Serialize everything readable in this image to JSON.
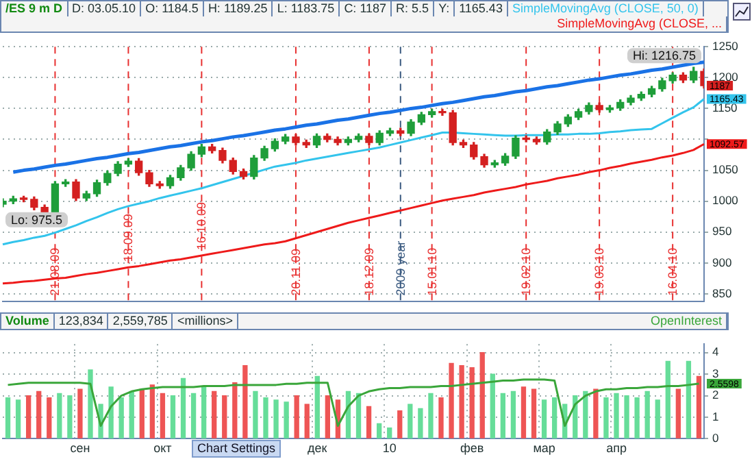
{
  "chart_data": [
    {
      "type": "candlestick",
      "title": "/ES 9 m D",
      "annotations": [
        "D: 03.05.10",
        "O: 1184.5",
        "H: 1189.25",
        "L: 1183.75",
        "C: 1187",
        "R: 5.5",
        "Y:",
        "1165.43",
        {
          "text": "Hi: 1216.75",
          "y": 1216.75
        },
        {
          "text": "Lo: 975.5",
          "y": 975.5
        }
      ],
      "categories": [
        null,
        null,
        null,
        null,
        null,
        "21.08.09",
        null,
        null,
        null,
        null,
        null,
        null,
        "18.09.09",
        null,
        null,
        null,
        null,
        null,
        null,
        "16.10.09",
        null,
        null,
        null,
        null,
        null,
        null,
        null,
        null,
        "20.11.09",
        null,
        null,
        null,
        null,
        null,
        null,
        "18.12.09",
        null,
        null,
        "2009 year",
        null,
        null,
        "15.01.10",
        null,
        null,
        null,
        null,
        null,
        null,
        null,
        null,
        "19.02.10",
        null,
        null,
        null,
        null,
        null,
        null,
        "19.03.10",
        null,
        null,
        null,
        null,
        null,
        null,
        "16.04.10",
        null,
        null,
        null
      ],
      "ohlc": [
        [
          995,
          1004,
          991,
          1000
        ],
        [
          1000,
          1008,
          996,
          1004
        ],
        [
          1004,
          1008,
          999,
          1003
        ],
        [
          1003,
          1007,
          986,
          990
        ],
        [
          990,
          994,
          975.5,
          982
        ],
        [
          982,
          1032,
          978,
          1028
        ],
        [
          1028,
          1035,
          1024,
          1031
        ],
        [
          1031,
          1035,
          1001,
          1005
        ],
        [
          1005,
          1016,
          1001,
          1012
        ],
        [
          1012,
          1034,
          1008,
          1030
        ],
        [
          1030,
          1049,
          1026,
          1045
        ],
        [
          1045,
          1064,
          1041,
          1060
        ],
        [
          1060,
          1069,
          1056,
          1065
        ],
        [
          1065,
          1069,
          1042,
          1046
        ],
        [
          1046,
          1050,
          1024,
          1028
        ],
        [
          1028,
          1032,
          1021,
          1025
        ],
        [
          1025,
          1042,
          1021,
          1038
        ],
        [
          1038,
          1058,
          1034,
          1054
        ],
        [
          1054,
          1080,
          1050,
          1076
        ],
        [
          1076,
          1092,
          1072,
          1088
        ],
        [
          1088,
          1092,
          1078,
          1082
        ],
        [
          1082,
          1086,
          1062,
          1066
        ],
        [
          1066,
          1070,
          1044,
          1048
        ],
        [
          1048,
          1052,
          1036,
          1040
        ],
        [
          1040,
          1074,
          1036,
          1070
        ],
        [
          1070,
          1089,
          1066,
          1085
        ],
        [
          1085,
          1101,
          1081,
          1097
        ],
        [
          1097,
          1108,
          1093,
          1104
        ],
        [
          1104,
          1108,
          1091,
          1095
        ],
        [
          1095,
          1099,
          1087,
          1091
        ],
        [
          1091,
          1109,
          1087,
          1105
        ],
        [
          1105,
          1109,
          1096,
          1100
        ],
        [
          1100,
          1104,
          1091,
          1095
        ],
        [
          1095,
          1104,
          1091,
          1100
        ],
        [
          1100,
          1109,
          1096,
          1105
        ],
        [
          1105,
          1109,
          1091,
          1095
        ],
        [
          1095,
          1114,
          1091,
          1110
        ],
        [
          1110,
          1118,
          1106,
          1114
        ],
        [
          1114,
          1118,
          1106,
          1110
        ],
        [
          1110,
          1132,
          1106,
          1128
        ],
        [
          1128,
          1144,
          1124,
          1140
        ],
        [
          1140,
          1149,
          1136,
          1145
        ],
        [
          1145,
          1149,
          1139,
          1143
        ],
        [
          1143,
          1147,
          1091,
          1095
        ],
        [
          1095,
          1099,
          1087,
          1091
        ],
        [
          1091,
          1095,
          1068,
          1072
        ],
        [
          1072,
          1076,
          1055,
          1059
        ],
        [
          1059,
          1066,
          1055,
          1062
        ],
        [
          1062,
          1077,
          1058,
          1073
        ],
        [
          1073,
          1106,
          1069,
          1102
        ],
        [
          1102,
          1106,
          1096,
          1100
        ],
        [
          1100,
          1104,
          1092,
          1096
        ],
        [
          1096,
          1116,
          1092,
          1112
        ],
        [
          1112,
          1129,
          1108,
          1125
        ],
        [
          1125,
          1140,
          1121,
          1136
        ],
        [
          1136,
          1149,
          1132,
          1145
        ],
        [
          1145,
          1159,
          1141,
          1155
        ],
        [
          1155,
          1159,
          1144,
          1148
        ],
        [
          1148,
          1155,
          1144,
          1151
        ],
        [
          1151,
          1164,
          1147,
          1160
        ],
        [
          1160,
          1171,
          1156,
          1167
        ],
        [
          1167,
          1177,
          1163,
          1173
        ],
        [
          1173,
          1186,
          1169,
          1182
        ],
        [
          1182,
          1199,
          1178,
          1195
        ],
        [
          1195,
          1208,
          1191,
          1204
        ],
        [
          1204,
          1208,
          1192,
          1196
        ],
        [
          1196,
          1216.75,
          1192,
          1210
        ],
        [
          1210,
          1214,
          1183,
          1187
        ]
      ],
      "colors": [
        "#1f9e3a",
        "#1f9e3a",
        "#d42020",
        "#d42020",
        "#d42020",
        "#1f9e3a",
        "#1f9e3a",
        "#d42020",
        "#1f9e3a",
        "#1f9e3a",
        "#1f9e3a",
        "#1f9e3a",
        "#1f9e3a",
        "#d42020",
        "#d42020",
        "#d42020",
        "#1f9e3a",
        "#1f9e3a",
        "#1f9e3a",
        "#1f9e3a",
        "#d42020",
        "#d42020",
        "#d42020",
        "#d42020",
        "#1f9e3a",
        "#1f9e3a",
        "#1f9e3a",
        "#1f9e3a",
        "#d42020",
        "#d42020",
        "#1f9e3a",
        "#d42020",
        "#d42020",
        "#1f9e3a",
        "#1f9e3a",
        "#d42020",
        "#1f9e3a",
        "#1f9e3a",
        "#d42020",
        "#1f9e3a",
        "#1f9e3a",
        "#1f9e3a",
        "#d42020",
        "#d42020",
        "#d42020",
        "#d42020",
        "#d42020",
        "#1f9e3a",
        "#1f9e3a",
        "#1f9e3a",
        "#d42020",
        "#d42020",
        "#1f9e3a",
        "#1f9e3a",
        "#1f9e3a",
        "#1f9e3a",
        "#1f9e3a",
        "#d42020",
        "#1f9e3a",
        "#1f9e3a",
        "#1f9e3a",
        "#1f9e3a",
        "#1f9e3a",
        "#1f9e3a",
        "#1f9e3a",
        "#d42020",
        "#1f9e3a",
        "#d42020"
      ],
      "value_labels": [
        null,
        null,
        null,
        null,
        null,
        null,
        null,
        null,
        null,
        null,
        null,
        null,
        null,
        null,
        null,
        null,
        null,
        null,
        null,
        null,
        null,
        null,
        null,
        null,
        null,
        null,
        null,
        null,
        null,
        null,
        null,
        null,
        null,
        null,
        null,
        null,
        null,
        null,
        null,
        null,
        null,
        null,
        null,
        null,
        null,
        null,
        null,
        null,
        null,
        null,
        null,
        null,
        null,
        null,
        null,
        null,
        null,
        null,
        null,
        null,
        null,
        null,
        null,
        null,
        null,
        null,
        null,
        "1187"
      ],
      "series": [
        {
          "type": "line",
          "name": "SimpleMovingAvg (CLOSE, 50, 0)",
          "color": "#33c4ec",
          "values": [
            930,
            934,
            937,
            941,
            944,
            949,
            955,
            961,
            968,
            974,
            981,
            987,
            992,
            996,
            1000,
            1005,
            1009,
            1013,
            1017,
            1021,
            1026,
            1031,
            1036,
            1041,
            1046,
            1051,
            1056,
            1059,
            1062,
            1066,
            1069,
            1072,
            1075,
            1078,
            1081,
            1084,
            1087,
            1091,
            1095,
            1099,
            1103,
            1107,
            1111,
            1111,
            1110,
            1109,
            1108,
            1107,
            1106,
            1106,
            1107,
            1107,
            1107,
            1108,
            1108,
            1109,
            1109,
            1110,
            1112,
            1113,
            1115,
            1116,
            1117,
            1126,
            1135,
            1144,
            1152,
            1165.43
          ],
          "value_labels": [
            null,
            null,
            null,
            null,
            null,
            null,
            null,
            null,
            null,
            null,
            null,
            null,
            null,
            null,
            null,
            null,
            null,
            null,
            null,
            null,
            null,
            null,
            null,
            null,
            null,
            null,
            null,
            null,
            null,
            null,
            null,
            null,
            null,
            null,
            null,
            null,
            null,
            null,
            null,
            null,
            null,
            null,
            null,
            null,
            null,
            null,
            null,
            null,
            null,
            null,
            null,
            null,
            null,
            null,
            null,
            null,
            null,
            null,
            null,
            null,
            null,
            null,
            null,
            null,
            null,
            null,
            null,
            "1165.43"
          ]
        },
        {
          "type": "line",
          "name": "SimpleMovingAvg (CLOSE, ...",
          "color": "#ee1a1a",
          "values": [
            867,
            868,
            870,
            871,
            873,
            875,
            876,
            879,
            882,
            884,
            887,
            890,
            893,
            895,
            898,
            901,
            904,
            906,
            909,
            912,
            915,
            918,
            921,
            924,
            927,
            930,
            932,
            935,
            940,
            945,
            950,
            955,
            960,
            965,
            969,
            973,
            977,
            981,
            985,
            989,
            993,
            997,
            1001,
            1004,
            1007,
            1010,
            1014,
            1017,
            1020,
            1023,
            1027,
            1030,
            1033,
            1037,
            1040,
            1043,
            1047,
            1050,
            1054,
            1057,
            1061,
            1064,
            1067,
            1071,
            1074,
            1078,
            1083,
            1092.57
          ],
          "value_labels": [
            null,
            null,
            null,
            null,
            null,
            null,
            null,
            null,
            null,
            null,
            null,
            null,
            null,
            null,
            null,
            null,
            null,
            null,
            null,
            null,
            null,
            null,
            null,
            null,
            null,
            null,
            null,
            null,
            null,
            null,
            null,
            null,
            null,
            null,
            null,
            null,
            null,
            null,
            null,
            null,
            null,
            null,
            null,
            null,
            null,
            null,
            null,
            null,
            null,
            null,
            null,
            null,
            null,
            null,
            null,
            null,
            null,
            null,
            null,
            null,
            null,
            null,
            null,
            null,
            null,
            null,
            null,
            "1092.57"
          ]
        },
        {
          "type": "line",
          "color": "#1a72e6",
          "values": [
            null,
            1047,
            1050,
            1052,
            1055,
            1058,
            1060,
            1063,
            1066,
            1069,
            1071,
            1074,
            1077,
            1079,
            1082,
            1085,
            1088,
            1090,
            1093,
            1096,
            1098,
            1101,
            1104,
            1106,
            1109,
            1112,
            1115,
            1117,
            1120,
            1123,
            1125,
            1128,
            1131,
            1133,
            1136,
            1139,
            1142,
            1144,
            1147,
            1150,
            1152,
            1155,
            1158,
            1160,
            1163,
            1166,
            1169,
            1171,
            1174,
            1177,
            1179,
            1182,
            1185,
            1187,
            1190,
            1193,
            1196,
            1198,
            1201,
            1204,
            1206,
            1209,
            1212,
            1214,
            1217,
            1220,
            1223,
            1225
          ]
        }
      ],
      "ylim": [
        838,
        1250
      ],
      "yticks": [
        850,
        900,
        950,
        1000,
        1050,
        {
          "value": 1100,
          "label": null
        },
        1150,
        1200,
        1250
      ],
      "ref_lines": [
        {
          "axis": "x",
          "value": "21.08.09",
          "color": "#e83030",
          "line_style": "dashed"
        },
        {
          "axis": "x",
          "value": "18.09.09",
          "color": "#e83030",
          "line_style": "dashed"
        },
        {
          "axis": "x",
          "value": "16.10.09",
          "color": "#e83030",
          "line_style": "dashed"
        },
        {
          "axis": "x",
          "value": "20.11.09",
          "color": "#e83030",
          "line_style": "dashed"
        },
        {
          "axis": "x",
          "value": "18.12.09",
          "color": "#e83030",
          "line_style": "dashed"
        },
        {
          "axis": "x",
          "value": "2009 year",
          "color": "#3a5a80",
          "line_style": "dashed"
        },
        {
          "axis": "x",
          "value": "15.01.10",
          "color": "#e83030",
          "line_style": "dashed"
        },
        {
          "axis": "x",
          "value": "19.02.10",
          "color": "#e83030",
          "line_style": "dashed"
        },
        {
          "axis": "x",
          "value": "19.03.10",
          "color": "#e83030",
          "line_style": "dashed"
        },
        {
          "axis": "x",
          "value": "16.04.10",
          "color": "#e83030",
          "line_style": "dashed"
        }
      ],
      "grid": "y",
      "legend": false,
      "marker": "none"
    },
    {
      "type": "bar",
      "title": "Volume",
      "subtitle": "123,834",
      "xlabel": "Chart Settings",
      "annotations": [
        "2,559,785",
        "<millions>"
      ],
      "categories": [
        null,
        null,
        null,
        null,
        null,
        null,
        null,
        "сен",
        null,
        null,
        null,
        null,
        null,
        null,
        null,
        "окт",
        null,
        null,
        null,
        null,
        null,
        null,
        null,
        null,
        null,
        null,
        null,
        null,
        null,
        null,
        "дек",
        null,
        null,
        null,
        null,
        null,
        null,
        "10",
        null,
        null,
        null,
        null,
        null,
        null,
        null,
        "фев",
        null,
        null,
        null,
        null,
        null,
        null,
        "мар",
        null,
        null,
        null,
        null,
        null,
        null,
        "апр",
        null,
        null,
        null,
        null,
        null,
        null,
        null,
        null
      ],
      "values": [
        1.9,
        1.8,
        2.0,
        2.2,
        1.9,
        2.1,
        2.0,
        2.3,
        3.2,
        1.6,
        2.4,
        1.9,
        2.2,
        2.3,
        2.5,
        2.1,
        2.0,
        2.8,
        2.1,
        2.4,
        2.2,
        2.0,
        2.6,
        3.4,
        2.2,
        1.9,
        1.8,
        1.7,
        2.0,
        1.6,
        2.9,
        2.0,
        1.8,
        2.2,
        2.1,
        1.5,
        0.7,
        0.5,
        1.3,
        1.6,
        1.4,
        2.1,
        1.9,
        3.5,
        3.4,
        3.3,
        4.0,
        3.0,
        2.1,
        2.2,
        2.4,
        2.3,
        1.8,
        1.9,
        1.6,
        2.0,
        2.2,
        2.3,
        1.9,
        2.1,
        2.0,
        1.9,
        2.2,
        1.8,
        3.6,
        2.3,
        3.6,
        2.9
      ],
      "colors": [
        "#66dd99",
        "#66dd99",
        "#ee5555",
        "#ee5555",
        "#ee5555",
        "#66dd99",
        "#66dd99",
        "#ee5555",
        "#66dd99",
        "#66dd99",
        "#66dd99",
        "#66dd99",
        "#66dd99",
        "#ee5555",
        "#ee5555",
        "#ee5555",
        "#66dd99",
        "#66dd99",
        "#66dd99",
        "#66dd99",
        "#ee5555",
        "#ee5555",
        "#ee5555",
        "#ee5555",
        "#66dd99",
        "#66dd99",
        "#66dd99",
        "#66dd99",
        "#ee5555",
        "#ee5555",
        "#66dd99",
        "#ee5555",
        "#ee5555",
        "#66dd99",
        "#66dd99",
        "#ee5555",
        "#66dd99",
        "#66dd99",
        "#ee5555",
        "#66dd99",
        "#66dd99",
        "#66dd99",
        "#ee5555",
        "#ee5555",
        "#ee5555",
        "#ee5555",
        "#ee5555",
        "#66dd99",
        "#66dd99",
        "#66dd99",
        "#ee5555",
        "#ee5555",
        "#66dd99",
        "#66dd99",
        "#66dd99",
        "#66dd99",
        "#66dd99",
        "#ee5555",
        "#66dd99",
        "#66dd99",
        "#66dd99",
        "#66dd99",
        "#66dd99",
        "#66dd99",
        "#66dd99",
        "#ee5555",
        "#66dd99",
        "#ee5555"
      ],
      "series": [
        {
          "type": "line",
          "name": "OpenInterest",
          "color": "#3aa63a",
          "values": [
            2.5,
            2.55,
            2.6,
            2.6,
            2.6,
            2.6,
            2.6,
            2.6,
            2.55,
            0.6,
            1.5,
            2.0,
            2.2,
            2.3,
            2.35,
            2.4,
            2.4,
            2.4,
            2.4,
            2.45,
            2.45,
            2.45,
            2.5,
            2.5,
            2.5,
            2.5,
            2.5,
            2.55,
            2.55,
            2.6,
            2.6,
            2.6,
            0.6,
            1.5,
            2.0,
            2.2,
            2.3,
            2.35,
            2.35,
            2.4,
            2.4,
            2.4,
            2.45,
            2.45,
            2.5,
            2.55,
            2.6,
            2.65,
            2.7,
            2.7,
            2.75,
            2.75,
            2.75,
            2.7,
            0.6,
            1.6,
            2.0,
            2.2,
            2.3,
            2.3,
            2.35,
            2.35,
            2.4,
            2.4,
            2.45,
            2.45,
            2.5,
            2.5598
          ],
          "value_labels": [
            null,
            null,
            null,
            null,
            null,
            null,
            null,
            null,
            null,
            null,
            null,
            null,
            null,
            null,
            null,
            null,
            null,
            null,
            null,
            null,
            null,
            null,
            null,
            null,
            null,
            null,
            null,
            null,
            null,
            null,
            null,
            null,
            null,
            null,
            null,
            null,
            null,
            null,
            null,
            null,
            null,
            null,
            null,
            null,
            null,
            null,
            null,
            null,
            null,
            null,
            null,
            null,
            null,
            null,
            null,
            null,
            null,
            null,
            null,
            null,
            null,
            null,
            null,
            null,
            null,
            null,
            null,
            "2.5598"
          ]
        }
      ],
      "ylim": [
        0,
        4.4
      ],
      "yticks": [
        0,
        1,
        2,
        3,
        4
      ],
      "grid": true,
      "legend": false,
      "marker": "none"
    }
  ]
}
